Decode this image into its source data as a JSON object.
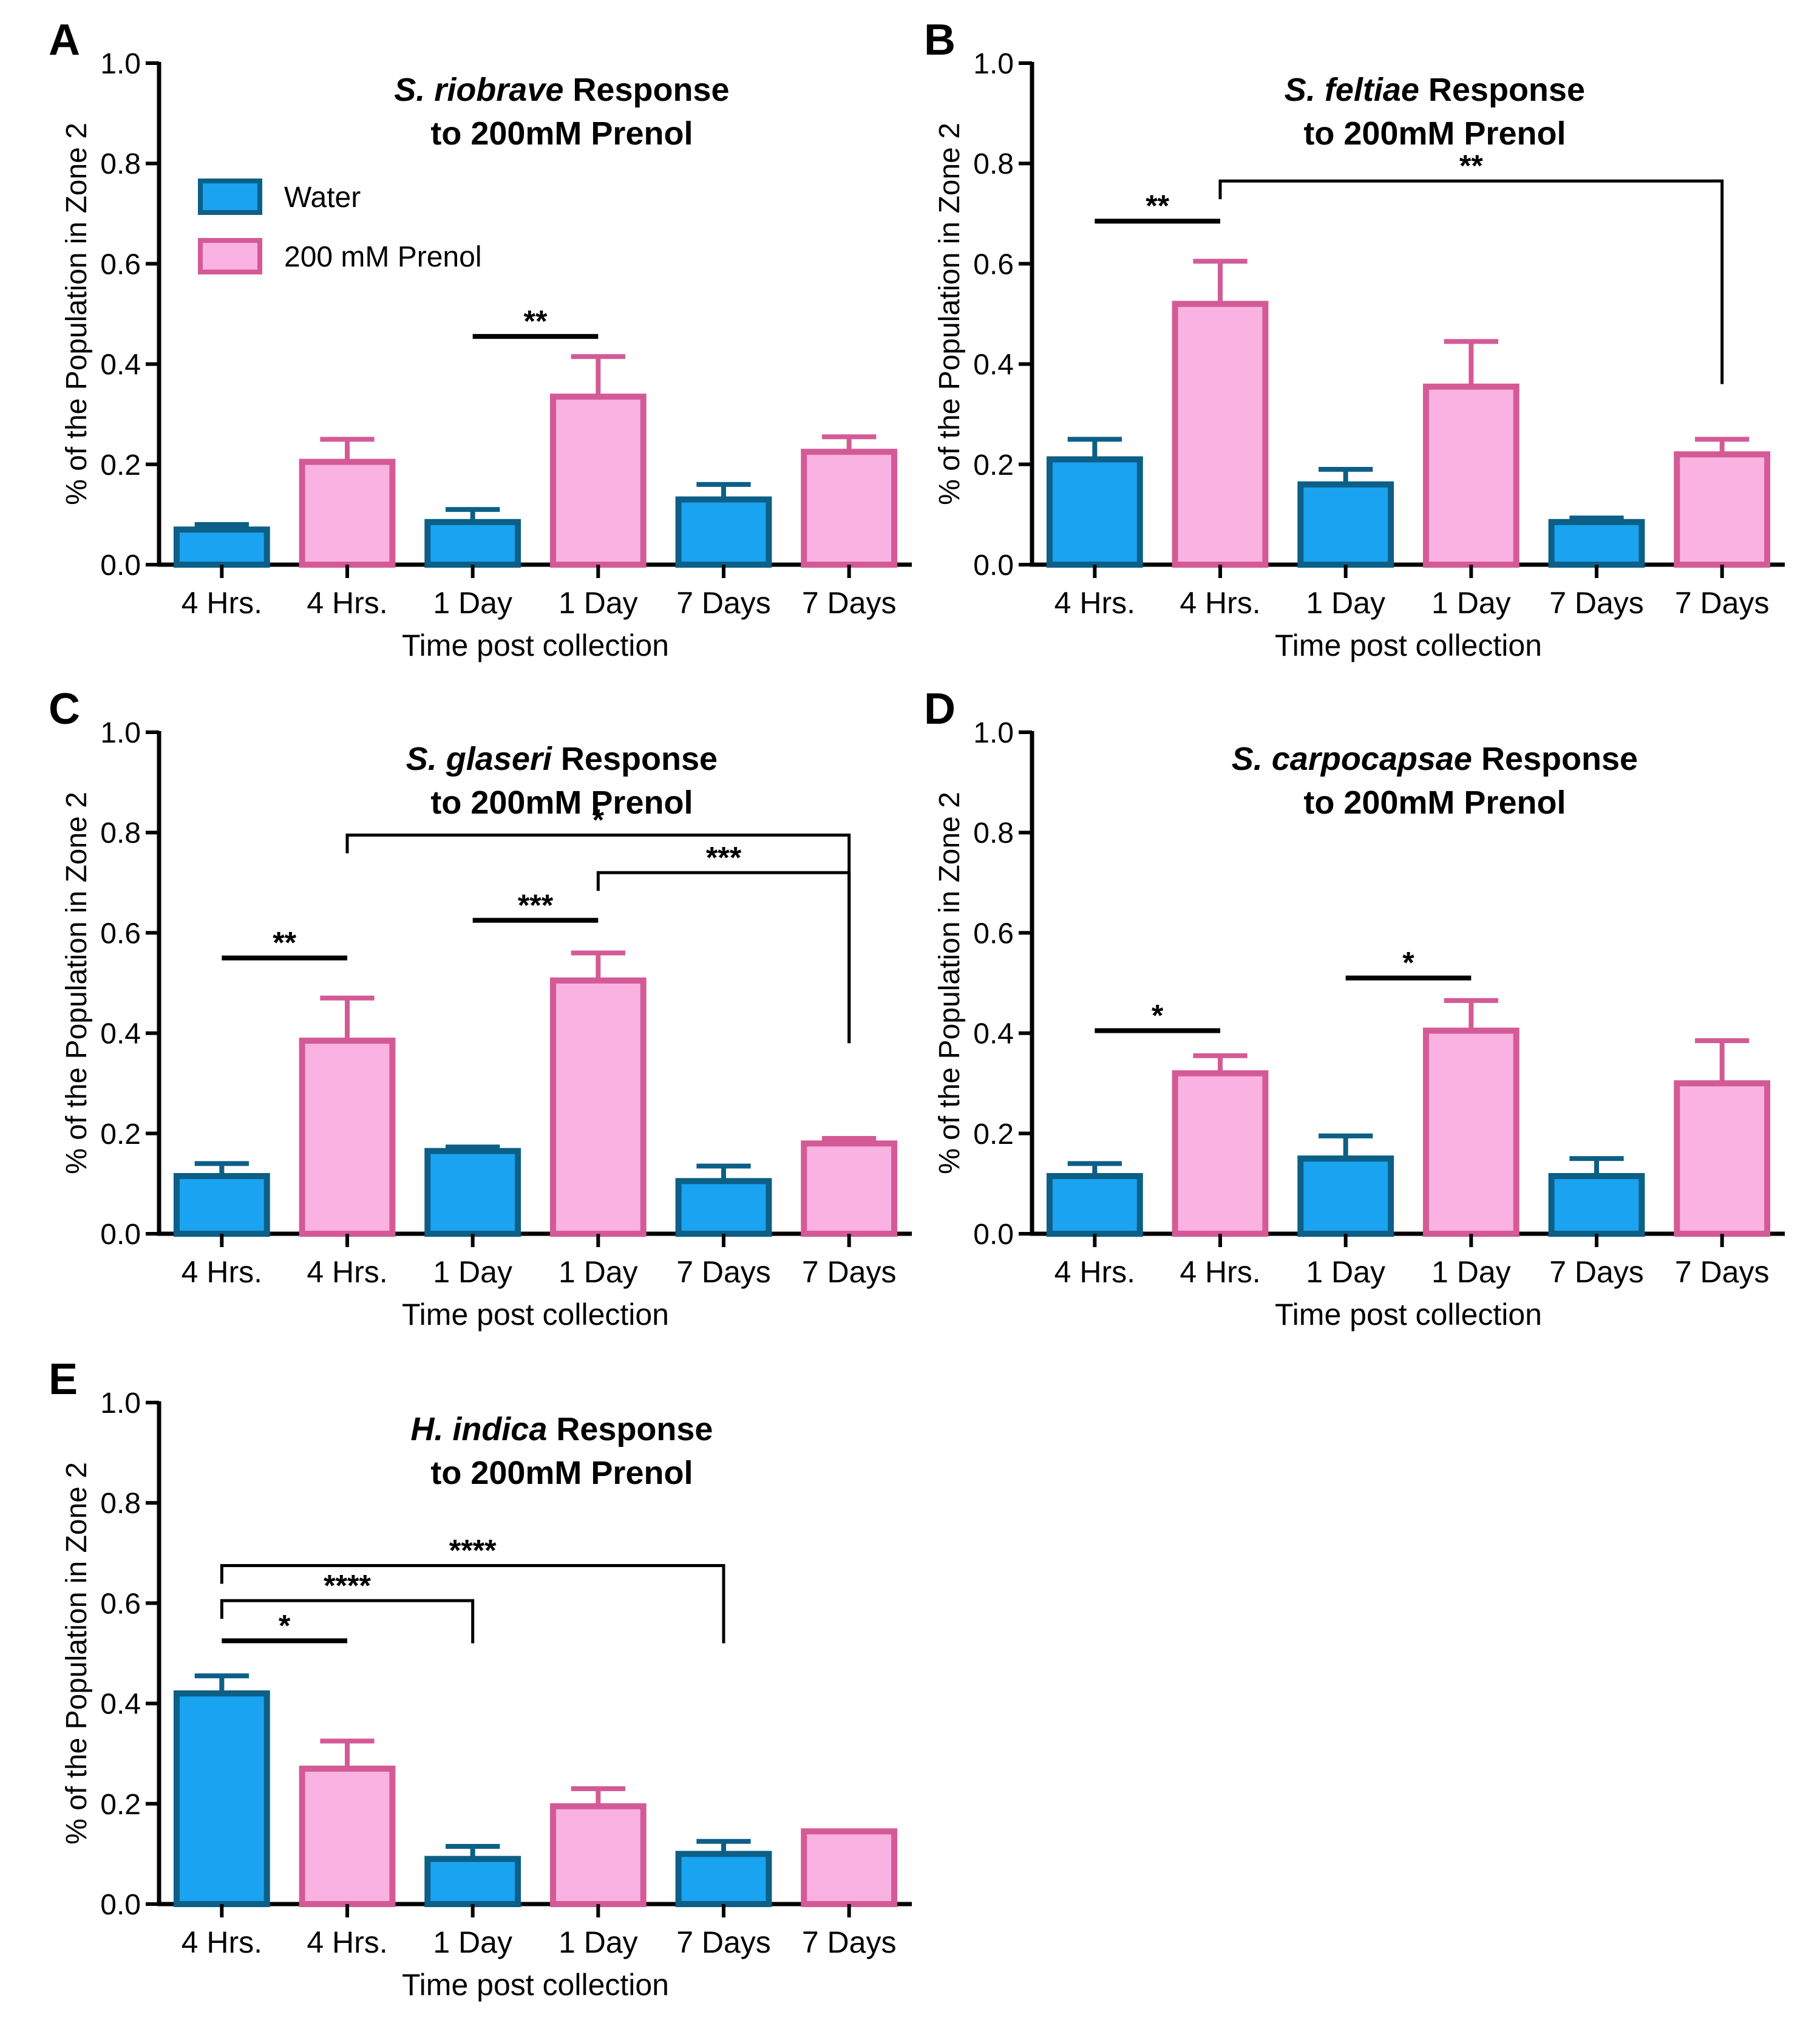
{
  "figure": {
    "colors": {
      "water_fill": "#1aa3f0",
      "water_stroke": "#0c5f86",
      "prenol_fill": "#f9b2e1",
      "prenol_stroke": "#d45a96",
      "axis": "#000000",
      "text": "#000000"
    },
    "legend": {
      "entries": [
        {
          "label": "Water",
          "series": "water"
        },
        {
          "label": "200 mM Prenol",
          "series": "prenol"
        }
      ]
    }
  },
  "chart_data": [
    {
      "panel": "A",
      "type": "bar",
      "title_species": "S. riobrave",
      "title_line1_rest": " Response",
      "title_line2": "to 200mM Prenol",
      "xlabel": "Time post collection",
      "ylabel": "% of the Population in Zone 2",
      "ylim": [
        0,
        1.0
      ],
      "yticks": [
        "0.0",
        "0.2",
        "0.4",
        "0.6",
        "0.8",
        "1.0"
      ],
      "categories": [
        "4 Hrs.",
        "4 Hrs.",
        "1 Day",
        "1 Day",
        "7 Days",
        "7 Days"
      ],
      "series_per_bar": [
        "water",
        "prenol",
        "water",
        "prenol",
        "water",
        "prenol"
      ],
      "values": [
        0.07,
        0.205,
        0.085,
        0.335,
        0.13,
        0.225
      ],
      "errors": [
        0.01,
        0.045,
        0.025,
        0.08,
        0.03,
        0.03
      ],
      "legend": true,
      "significance": [
        {
          "label": "**",
          "from": 2,
          "to": 3,
          "style": "bar",
          "y": 0.455
        }
      ]
    },
    {
      "panel": "B",
      "type": "bar",
      "title_species": "S. feltiae",
      "title_line1_rest": " Response",
      "title_line2": "to 200mM Prenol",
      "xlabel": "Time post collection",
      "ylabel": "% of the Population in Zone 2",
      "ylim": [
        0,
        1.0
      ],
      "yticks": [
        "0.0",
        "0.2",
        "0.4",
        "0.6",
        "0.8",
        "1.0"
      ],
      "categories": [
        "4 Hrs.",
        "4 Hrs.",
        "1 Day",
        "1 Day",
        "7 Days",
        "7 Days"
      ],
      "series_per_bar": [
        "water",
        "prenol",
        "water",
        "prenol",
        "water",
        "prenol"
      ],
      "values": [
        0.21,
        0.52,
        0.16,
        0.355,
        0.085,
        0.22
      ],
      "errors": [
        0.04,
        0.085,
        0.03,
        0.09,
        0.008,
        0.03
      ],
      "legend": false,
      "significance": [
        {
          "label": "**",
          "from": 0,
          "to": 1,
          "style": "bar",
          "y": 0.685
        },
        {
          "label": "**",
          "from": 1,
          "to": 5,
          "style": "bracket",
          "y": 0.765,
          "drop_to": 0.36
        }
      ]
    },
    {
      "panel": "C",
      "type": "bar",
      "title_species": "S. glaseri",
      "title_line1_rest": " Response",
      "title_line2": "to 200mM Prenol",
      "xlabel": "Time post collection",
      "ylabel": "% of the Population in Zone 2",
      "ylim": [
        0,
        1.0
      ],
      "yticks": [
        "0.0",
        "0.2",
        "0.4",
        "0.6",
        "0.8",
        "1.0"
      ],
      "categories": [
        "4 Hrs.",
        "4 Hrs.",
        "1 Day",
        "1 Day",
        "7 Days",
        "7 Days"
      ],
      "series_per_bar": [
        "water",
        "prenol",
        "water",
        "prenol",
        "water",
        "prenol"
      ],
      "values": [
        0.115,
        0.385,
        0.165,
        0.505,
        0.105,
        0.18
      ],
      "errors": [
        0.025,
        0.085,
        0.008,
        0.055,
        0.03,
        0.01
      ],
      "legend": false,
      "significance": [
        {
          "label": "**",
          "from": 0,
          "to": 1,
          "style": "bar",
          "y": 0.55
        },
        {
          "label": "***",
          "from": 2,
          "to": 3,
          "style": "bar",
          "y": 0.625
        },
        {
          "label": "*",
          "from": 1,
          "to": 5,
          "style": "bracket",
          "y": 0.795,
          "drop_to": 0.38
        },
        {
          "label": "***",
          "from": 3,
          "to": 5,
          "style": "bracket",
          "y": 0.72,
          "drop_to": 0.38
        }
      ]
    },
    {
      "panel": "D",
      "type": "bar",
      "title_species": "S. carpocapsae",
      "title_line1_rest": " Response",
      "title_line2": "to 200mM Prenol",
      "xlabel": "Time post collection",
      "ylabel": "% of the Population in Zone 2",
      "ylim": [
        0,
        1.0
      ],
      "yticks": [
        "0.0",
        "0.2",
        "0.4",
        "0.6",
        "0.8",
        "1.0"
      ],
      "categories": [
        "4 Hrs.",
        "4 Hrs.",
        "1 Day",
        "1 Day",
        "7 Days",
        "7 Days"
      ],
      "series_per_bar": [
        "water",
        "prenol",
        "water",
        "prenol",
        "water",
        "prenol"
      ],
      "values": [
        0.115,
        0.32,
        0.15,
        0.405,
        0.115,
        0.3
      ],
      "errors": [
        0.025,
        0.035,
        0.045,
        0.06,
        0.035,
        0.085
      ],
      "legend": false,
      "significance": [
        {
          "label": "*",
          "from": 0,
          "to": 1,
          "style": "bar",
          "y": 0.405
        },
        {
          "label": "*",
          "from": 2,
          "to": 3,
          "style": "bar",
          "y": 0.51
        }
      ]
    },
    {
      "panel": "E",
      "type": "bar",
      "title_species": "H. indica",
      "title_line1_rest": " Response",
      "title_line2": "to 200mM Prenol",
      "xlabel": "Time post collection",
      "ylabel": "% of the Population in Zone 2",
      "ylim": [
        0,
        1.0
      ],
      "yticks": [
        "0.0",
        "0.2",
        "0.4",
        "0.6",
        "0.8",
        "1.0"
      ],
      "categories": [
        "4 Hrs.",
        "4 Hrs.",
        "1 Day",
        "1 Day",
        "7 Days",
        "7 Days"
      ],
      "series_per_bar": [
        "water",
        "prenol",
        "water",
        "prenol",
        "water",
        "prenol"
      ],
      "values": [
        0.42,
        0.27,
        0.09,
        0.195,
        0.1,
        0.145
      ],
      "errors": [
        0.035,
        0.055,
        0.025,
        0.035,
        0.025,
        0.0
      ],
      "legend": false,
      "significance": [
        {
          "label": "*",
          "from": 0,
          "to": 1,
          "style": "bar",
          "y": 0.525
        },
        {
          "label": "****",
          "from": 0,
          "to": 2,
          "style": "bracket",
          "y": 0.605,
          "drop_to": 0.52
        },
        {
          "label": "****",
          "from": 0,
          "to": 4,
          "style": "bracket",
          "y": 0.675,
          "drop_to": 0.52
        }
      ]
    }
  ]
}
